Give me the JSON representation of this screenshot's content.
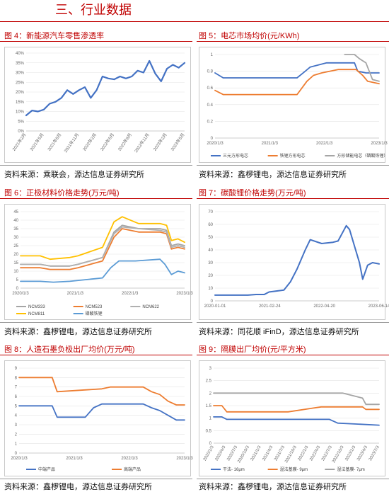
{
  "section_title": "三、行业数据",
  "sources": {
    "fig4": "资料来源：乘联会，源达信息证券研究所",
    "fig5": "资料来源：鑫椤锂电，源达信息证券研究所",
    "fig6": "资料来源：鑫椤锂电，源达信息证券研究所",
    "fig7": "资料来源：同花顺 iFinD，源达信息证券研究所",
    "fig8": "资料来源：鑫椤锂电，源达信息证券研究所",
    "fig9": "资料来源：鑫椤锂电，源达信息证券研究所"
  },
  "colors": {
    "accent": "#c00000",
    "blue": "#4472c4",
    "orange": "#ed7d31",
    "gray": "#a5a5a5",
    "yellow": "#ffc000",
    "lightblue": "#5b9bd5"
  },
  "chart_data": [
    {
      "id": "fig4",
      "type": "line",
      "title": "图 4：新能源汽车零售渗透率",
      "xticks": [
        "2021年2月",
        "2021年5月",
        "2021年8月",
        "2021年11月",
        "2022年2月",
        "2022年5月",
        "2022年8月",
        "2022年11月",
        "2023年2月",
        "2023年5月"
      ],
      "yticks": [
        "0%",
        "5%",
        "10%",
        "15%",
        "20%",
        "25%",
        "30%",
        "35%",
        "40%"
      ],
      "ylim": [
        0,
        40
      ],
      "series": [
        {
          "values": [
            8,
            10.5,
            10,
            11,
            14,
            15,
            17,
            21,
            19,
            21,
            22.5,
            17,
            21,
            28,
            27,
            26.5,
            28,
            27,
            28,
            31,
            30,
            36,
            29.5,
            25.5,
            32,
            34,
            32.5,
            35
          ]
        }
      ]
    },
    {
      "id": "fig5",
      "type": "line",
      "title": "图 5：电芯市场均价(元/KWh)",
      "xticks": [
        "2020/1/3",
        "2021/1/3",
        "2022/1/3",
        "2023/1/3"
      ],
      "yticks": [
        "0",
        "0.2",
        "0.4",
        "0.6",
        "0.8",
        "1"
      ],
      "ylim": [
        0,
        1
      ],
      "series": [
        {
          "name": "三元方形电芯",
          "x": [
            0,
            0.05,
            0.37,
            0.38,
            0.5,
            0.55,
            0.58,
            0.68,
            0.85,
            0.87,
            0.92,
            1
          ],
          "values": [
            0.78,
            0.72,
            0.72,
            0.72,
            0.72,
            0.8,
            0.85,
            0.9,
            0.9,
            0.8,
            0.78,
            0.78
          ]
        },
        {
          "name": "铁锂方形电芯",
          "x": [
            0,
            0.05,
            0.5,
            0.53,
            0.56,
            0.6,
            0.65,
            0.75,
            0.86,
            0.9,
            0.93,
            1
          ],
          "values": [
            0.57,
            0.52,
            0.52,
            0.6,
            0.68,
            0.75,
            0.78,
            0.82,
            0.82,
            0.75,
            0.68,
            0.65
          ]
        },
        {
          "name": "方形储能电芯（磷酸铁锂）",
          "x": [
            0.79,
            0.85,
            0.88,
            0.92,
            0.96,
            1
          ],
          "values": [
            1,
            1,
            0.95,
            0.9,
            0.7,
            0.68
          ]
        }
      ]
    },
    {
      "id": "fig6",
      "type": "line",
      "title": "图 6：正极材料价格走势(万元/吨)",
      "xticks": [
        "2020/1/3",
        "2021/1/3",
        "2022/1/3",
        "2023/1/3"
      ],
      "yticks": [
        "0",
        "5",
        "10",
        "15",
        "20",
        "25",
        "30",
        "35",
        "40",
        "45"
      ],
      "ylim": [
        0,
        45
      ],
      "series": [
        {
          "name": "NCM333",
          "x": [
            0,
            0.12,
            0.18,
            0.3,
            0.35,
            0.5,
            0.57,
            0.62,
            0.72,
            0.85,
            0.89,
            0.92,
            0.96,
            1
          ],
          "values": [
            14,
            14,
            13,
            13,
            14,
            18,
            33,
            37,
            35,
            35,
            34,
            25,
            26,
            25
          ]
        },
        {
          "name": "NCM523",
          "x": [
            0,
            0.12,
            0.18,
            0.3,
            0.35,
            0.5,
            0.57,
            0.62,
            0.72,
            0.85,
            0.89,
            0.92,
            0.96,
            1
          ],
          "values": [
            12,
            12,
            11,
            11,
            12,
            16,
            30,
            35,
            33,
            33,
            32,
            23,
            24,
            23
          ]
        },
        {
          "name": "NCM622",
          "x": [
            0,
            0.12,
            0.18,
            0.3,
            0.35,
            0.5,
            0.57,
            0.62,
            0.72,
            0.85,
            0.89,
            0.92,
            0.96,
            1
          ],
          "values": [
            14,
            14,
            13,
            13,
            14,
            18,
            32,
            36,
            35,
            34,
            33,
            24,
            25,
            24
          ]
        },
        {
          "name": "NCM811",
          "x": [
            0,
            0.12,
            0.18,
            0.3,
            0.35,
            0.5,
            0.57,
            0.62,
            0.72,
            0.85,
            0.89,
            0.92,
            0.96,
            1
          ],
          "values": [
            19,
            19,
            17,
            18,
            19,
            24,
            39,
            42,
            38,
            38,
            37,
            28,
            29,
            27
          ]
        },
        {
          "name": "磷酸铁锂",
          "x": [
            0,
            0.12,
            0.2,
            0.3,
            0.4,
            0.5,
            0.55,
            0.6,
            0.7,
            0.85,
            0.88,
            0.92,
            0.96,
            1
          ],
          "values": [
            4,
            4,
            3.5,
            4,
            5,
            6,
            12,
            16,
            16,
            17,
            14,
            8,
            10,
            9
          ]
        }
      ]
    },
    {
      "id": "fig7",
      "type": "line",
      "title": "图 7：碳酸锂价格走势(万元/吨)",
      "xticks": [
        "2020-01-01",
        "2021-02-24",
        "2022-04-20",
        "2023-06-14"
      ],
      "yticks": [
        "0",
        "10",
        "20",
        "30",
        "40",
        "50",
        "60",
        "70"
      ],
      "ylim": [
        0,
        70
      ],
      "series": [
        {
          "x": [
            0,
            0.2,
            0.25,
            0.3,
            0.33,
            0.42,
            0.46,
            0.5,
            0.55,
            0.58,
            0.65,
            0.72,
            0.75,
            0.8,
            0.82,
            0.85,
            0.88,
            0.9,
            0.93,
            0.96,
            1
          ],
          "values": [
            4.5,
            4.5,
            5,
            5,
            7,
            8.5,
            15,
            25,
            40,
            48,
            45,
            46,
            47,
            59,
            56,
            43,
            30,
            17,
            28,
            30,
            29
          ]
        }
      ]
    },
    {
      "id": "fig8",
      "type": "line",
      "title": "图 8：人造石墨负极出厂均价(万元/吨)",
      "xticks": [
        "2020/1/3",
        "2021/1/3",
        "2022/1/3",
        "2023/1/3"
      ],
      "yticks": [
        "0",
        "1",
        "2",
        "3",
        "4",
        "5",
        "6",
        "7",
        "8",
        "9"
      ],
      "ylim": [
        0,
        9
      ],
      "series": [
        {
          "name": "中端产品",
          "x": [
            0,
            0.2,
            0.23,
            0.4,
            0.45,
            0.5,
            0.75,
            0.8,
            0.85,
            0.9,
            0.95,
            1
          ],
          "values": [
            5,
            5,
            3.8,
            3.8,
            4.8,
            5.2,
            5.2,
            4.8,
            4.5,
            4,
            3.5,
            3.5
          ]
        },
        {
          "name": "高端产品",
          "x": [
            0,
            0.2,
            0.23,
            0.5,
            0.55,
            0.75,
            0.8,
            0.85,
            0.9,
            0.95,
            1
          ],
          "values": [
            8,
            8,
            6.5,
            6.8,
            7,
            7,
            6.5,
            6.2,
            5.5,
            5.1,
            5.1
          ]
        }
      ]
    },
    {
      "id": "fig9",
      "type": "line",
      "title": "图 9：隔膜出厂均价(元/平方米)",
      "xticks": [
        "2020/1/3",
        "2020/4/3",
        "2020/7/3",
        "2020/10/3",
        "2021/1/3",
        "2021/4/3",
        "2021/7/3",
        "2021/10/3",
        "2022/1/3",
        "2022/4/3",
        "2022/7/3",
        "2022/10/3",
        "2023/1/3",
        "2023/4/3",
        "2023/7/3"
      ],
      "yticks": [
        "0",
        "0.5",
        "1",
        "1.5",
        "2",
        "2.5",
        "3"
      ],
      "ylim": [
        0,
        3
      ],
      "series": [
        {
          "name": "干法- 16μm",
          "x": [
            0,
            0.05,
            0.08,
            0.7,
            0.75,
            1
          ],
          "values": [
            1.05,
            1.05,
            0.95,
            0.95,
            0.8,
            0.72
          ]
        },
        {
          "name": "湿法基膜- 9μm",
          "x": [
            0,
            0.05,
            0.08,
            0.45,
            0.6,
            0.65,
            0.9,
            0.92,
            1
          ],
          "values": [
            1.5,
            1.5,
            1.25,
            1.25,
            1.4,
            1.45,
            1.45,
            1.35,
            1.35
          ]
        },
        {
          "name": "湿法基膜- 7μm",
          "x": [
            0,
            0.78,
            0.9,
            0.92,
            1
          ],
          "values": [
            2,
            2,
            1.8,
            1.55,
            1.55
          ]
        }
      ]
    }
  ]
}
